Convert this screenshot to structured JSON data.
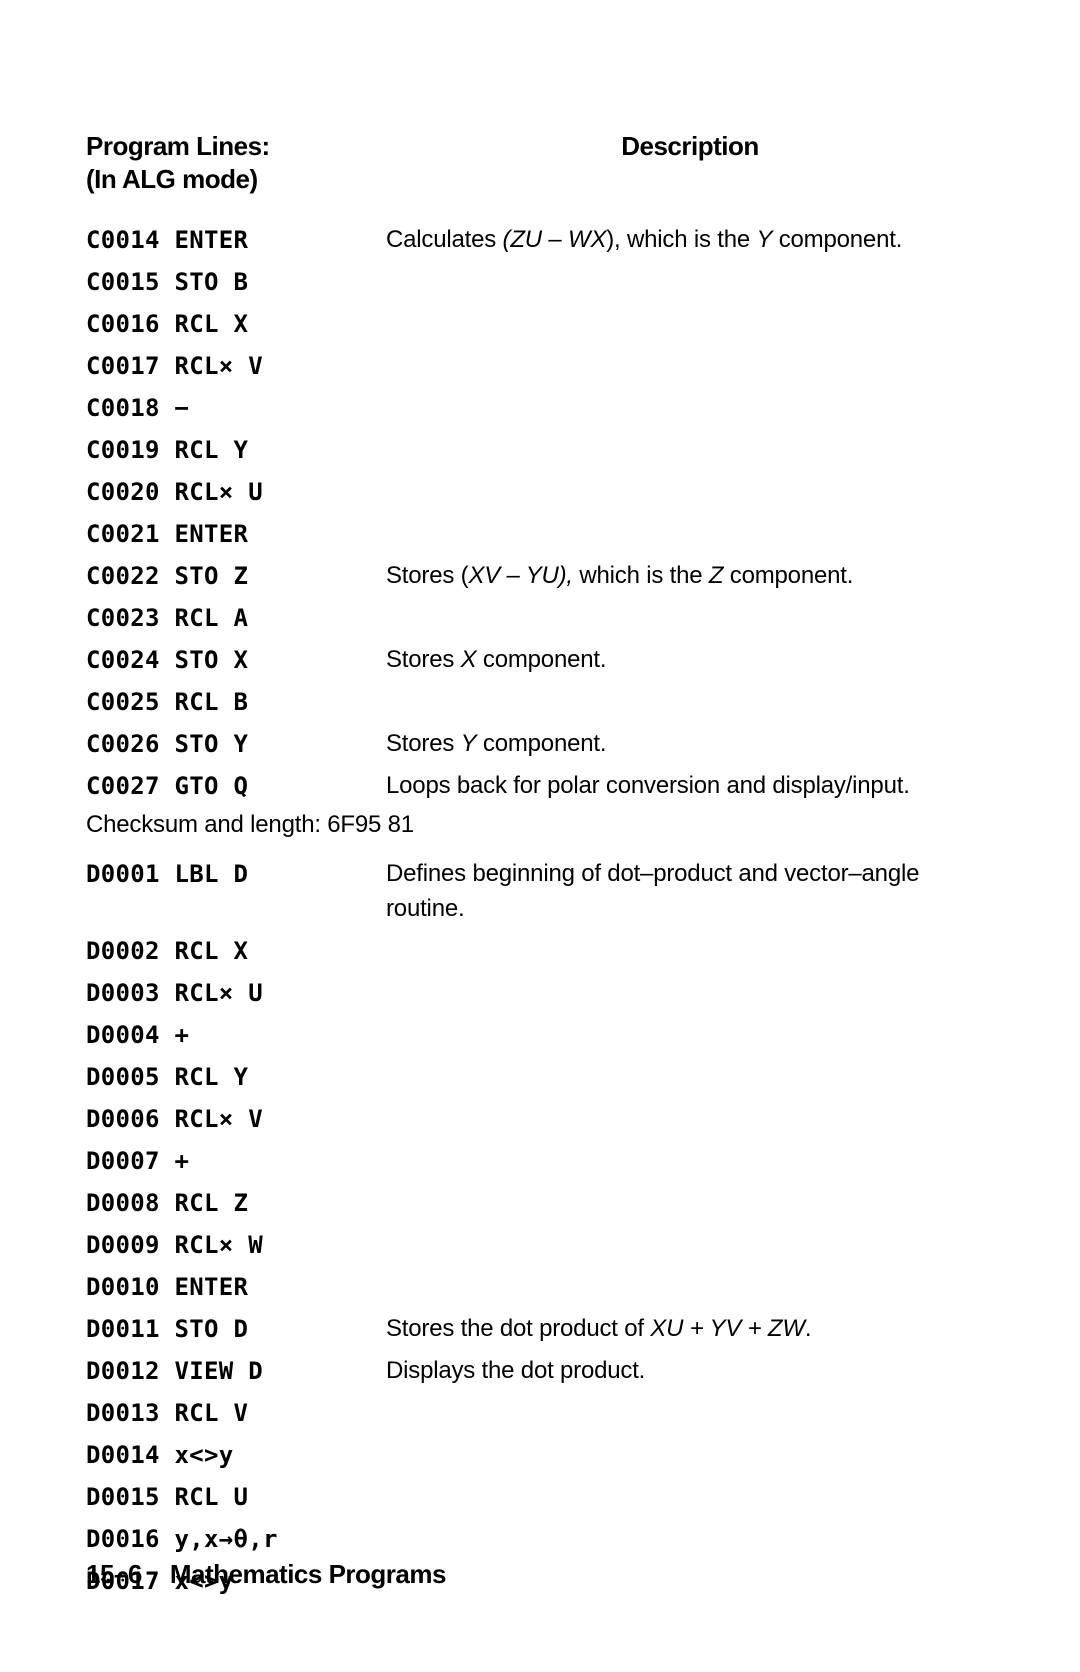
{
  "header": {
    "left_line1": "Program Lines:",
    "left_line2": "(In ALG mode)",
    "right": "Description"
  },
  "rows": [
    {
      "code": "C0014 ENTER",
      "desc_pre": "Calculates ",
      "desc_ital": "(ZU – WX",
      "desc_post": "), which is the ",
      "desc_ital2": "Y",
      "desc_post2": " component."
    },
    {
      "code": "C0015 STO B",
      "desc": ""
    },
    {
      "code": "C0016 RCL X",
      "desc": ""
    },
    {
      "code": "C0017 RCL× V",
      "desc": ""
    },
    {
      "code": "C0018 −",
      "desc": ""
    },
    {
      "code": "C0019 RCL Y",
      "desc": ""
    },
    {
      "code": "C0020 RCL× U",
      "desc": ""
    },
    {
      "code": "C0021 ENTER",
      "desc": ""
    },
    {
      "code": "C0022 STO Z",
      "desc_pre": "Stores (",
      "desc_ital": "XV – YU),",
      "desc_post": " which is the ",
      "desc_ital2": "Z",
      "desc_post2": " component."
    },
    {
      "code": "C0023 RCL A",
      "desc": ""
    },
    {
      "code": "C0024 STO X",
      "desc_pre": "Stores ",
      "desc_ital": "X",
      "desc_post": " component."
    },
    {
      "code": "C0025 RCL B",
      "desc": ""
    },
    {
      "code": "C0026 STO Y",
      "desc_pre": "Stores ",
      "desc_ital": "Y",
      "desc_post": " component."
    },
    {
      "code": "C0027 GTO Q",
      "desc": "Loops back for polar conversion and display/input."
    }
  ],
  "checksum": "Checksum and length: 6F95   81",
  "rows2": [
    {
      "code": "D0001 LBL D",
      "desc": "Defines beginning of dot–product and vector–angle routine."
    },
    {
      "code": "D0002 RCL X",
      "desc": ""
    },
    {
      "code": "D0003 RCL× U",
      "desc": ""
    },
    {
      "code": "D0004 +",
      "desc": ""
    },
    {
      "code": "D0005 RCL Y",
      "desc": ""
    },
    {
      "code": "D0006 RCL× V",
      "desc": ""
    },
    {
      "code": "D0007 +",
      "desc": ""
    },
    {
      "code": "D0008 RCL Z",
      "desc": ""
    },
    {
      "code": "D0009 RCL× W",
      "desc": ""
    },
    {
      "code": "D0010 ENTER",
      "desc": ""
    },
    {
      "code": "D0011 STO D",
      "desc_pre": "Stores the dot product of ",
      "desc_ital": "XU + YV + ZW",
      "desc_post": "."
    },
    {
      "code": "D0012 VIEW D",
      "desc": "Displays the dot product."
    },
    {
      "code": "D0013 RCL V",
      "desc": ""
    },
    {
      "code": "D0014 x<>y",
      "desc": ""
    },
    {
      "code": "D0015 RCL U",
      "desc": ""
    },
    {
      "code": "D0016 y,x→θ,r",
      "desc": ""
    },
    {
      "code": "D0017 x<>y",
      "desc": ""
    }
  ],
  "footer": {
    "section": "15–6",
    "title": "Mathematics Programs"
  }
}
